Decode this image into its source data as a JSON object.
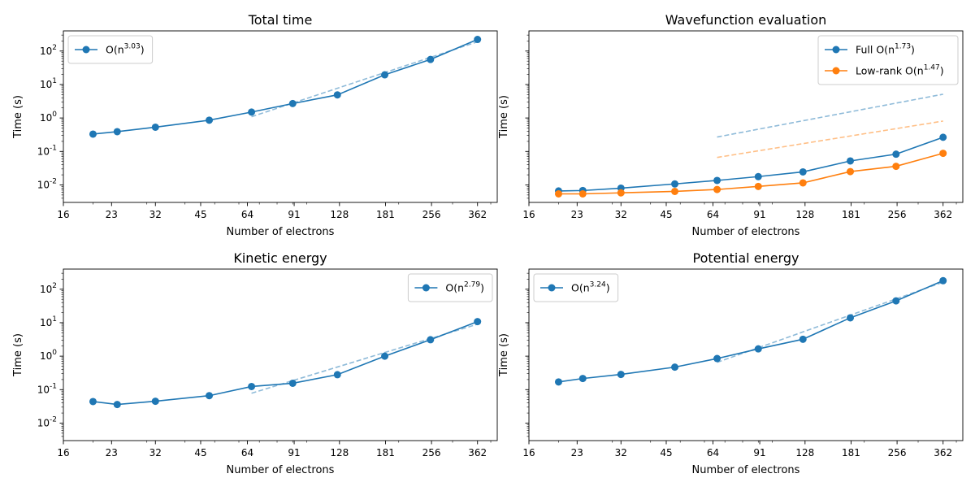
{
  "chart_data": [
    {
      "type": "line",
      "title": "Total time",
      "xlabel": "Number of electrons",
      "ylabel": "Time (s)",
      "xscale": "log",
      "yscale": "log",
      "xlim": [
        16,
        420
      ],
      "ylim": [
        0.003,
        400
      ],
      "xticks": [
        16,
        23,
        32,
        45,
        64,
        91,
        128,
        181,
        256,
        362
      ],
      "yticks": [
        0.01,
        0.1,
        1,
        10,
        100
      ],
      "ytick_labels": [
        "10^-2",
        "10^-1",
        "10^0",
        "10^1",
        "10^2"
      ],
      "show_ytick_labels": true,
      "grid": false,
      "legend_loc": "upper left",
      "x": [
        20,
        24,
        32,
        48,
        66,
        90,
        126,
        180,
        254,
        362
      ],
      "series": [
        {
          "name": "O(n^3.03)",
          "name_base": "O(n",
          "name_exp": "3.03",
          "name_close": ")",
          "color": "#1f77b4",
          "values": [
            0.33,
            0.39,
            0.53,
            0.86,
            1.5,
            2.7,
            4.9,
            19.5,
            56,
            222
          ],
          "fit": {
            "x_from": 66,
            "x_to": 362,
            "coef": 3.34e-06,
            "exponent": 3.03
          }
        }
      ]
    },
    {
      "type": "line",
      "title": "Wavefunction evaluation",
      "xlabel": "Number of electrons",
      "ylabel": "Time (s)",
      "xscale": "log",
      "yscale": "log",
      "xlim": [
        16,
        420
      ],
      "ylim": [
        0.003,
        400
      ],
      "xticks": [
        16,
        23,
        32,
        45,
        64,
        91,
        128,
        181,
        256,
        362
      ],
      "yticks": [
        0.01,
        0.1,
        1,
        10,
        100
      ],
      "ytick_labels": [
        "",
        "",
        "",
        "",
        ""
      ],
      "show_ytick_labels": false,
      "grid": false,
      "legend_loc": "upper right",
      "x": [
        20,
        24,
        32,
        48,
        66,
        90,
        126,
        180,
        254,
        362
      ],
      "series": [
        {
          "name": "Full O(n^1.73)",
          "name_base": "Full O(n",
          "name_exp": "1.73",
          "name_close": ")",
          "color": "#1f77b4",
          "values": [
            0.0066,
            0.0068,
            0.008,
            0.0107,
            0.0136,
            0.0177,
            0.0245,
            0.052,
            0.083,
            0.265
          ],
          "fit": {
            "x_from": 66,
            "x_to": 362,
            "coef": 0.000192,
            "exponent": 1.73
          }
        },
        {
          "name": "Low-rank O(n^1.47)",
          "name_base": "Low-rank O(n",
          "name_exp": "1.47",
          "name_close": ")",
          "color": "#ff7f0e",
          "values": [
            0.0054,
            0.0054,
            0.0058,
            0.0064,
            0.0073,
            0.009,
            0.0115,
            0.025,
            0.036,
            0.088
          ],
          "fit": {
            "x_from": 66,
            "x_to": 362,
            "coef": 0.00014,
            "exponent": 1.47
          }
        }
      ]
    },
    {
      "type": "line",
      "title": "Kinetic energy",
      "xlabel": "Number of electrons",
      "ylabel": "Time (s)",
      "xscale": "log",
      "yscale": "log",
      "xlim": [
        16,
        420
      ],
      "ylim": [
        0.003,
        400
      ],
      "xticks": [
        16,
        23,
        32,
        45,
        64,
        91,
        128,
        181,
        256,
        362
      ],
      "yticks": [
        0.01,
        0.1,
        1,
        10,
        100
      ],
      "ytick_labels": [
        "10^-2",
        "10^-1",
        "10^0",
        "10^1",
        "10^2"
      ],
      "show_ytick_labels": true,
      "grid": false,
      "legend_loc": "upper right",
      "x": [
        20,
        24,
        32,
        48,
        66,
        90,
        126,
        180,
        254,
        362
      ],
      "series": [
        {
          "name": "O(n^2.79)",
          "name_base": "O(n",
          "name_exp": "2.79",
          "name_close": ")",
          "color": "#1f77b4",
          "values": [
            0.044,
            0.036,
            0.045,
            0.066,
            0.124,
            0.155,
            0.28,
            1.0,
            3.1,
            10.8
          ],
          "fit": {
            "x_from": 66,
            "x_to": 362,
            "coef": 6.55e-07,
            "exponent": 2.79
          }
        }
      ]
    },
    {
      "type": "line",
      "title": "Potential energy",
      "xlabel": "Number of electrons",
      "ylabel": "Time (s)",
      "xscale": "log",
      "yscale": "log",
      "xlim": [
        16,
        420
      ],
      "ylim": [
        0.003,
        400
      ],
      "xticks": [
        16,
        23,
        32,
        45,
        64,
        91,
        128,
        181,
        256,
        362
      ],
      "yticks": [
        0.01,
        0.1,
        1,
        10,
        100
      ],
      "ytick_labels": [
        "",
        "",
        "",
        "",
        ""
      ],
      "show_ytick_labels": false,
      "grid": false,
      "legend_loc": "upper left",
      "x": [
        20,
        24,
        32,
        48,
        66,
        90,
        126,
        180,
        254,
        362
      ],
      "series": [
        {
          "name": "O(n^3.24)",
          "name_base": "O(n",
          "name_exp": "3.24",
          "name_close": ")",
          "color": "#1f77b4",
          "values": [
            0.17,
            0.215,
            0.285,
            0.47,
            0.85,
            1.65,
            3.2,
            14,
            45,
            180
          ],
          "fit": {
            "x_from": 66,
            "x_to": 362,
            "coef": 8.3e-07,
            "exponent": 3.24
          }
        }
      ]
    }
  ]
}
